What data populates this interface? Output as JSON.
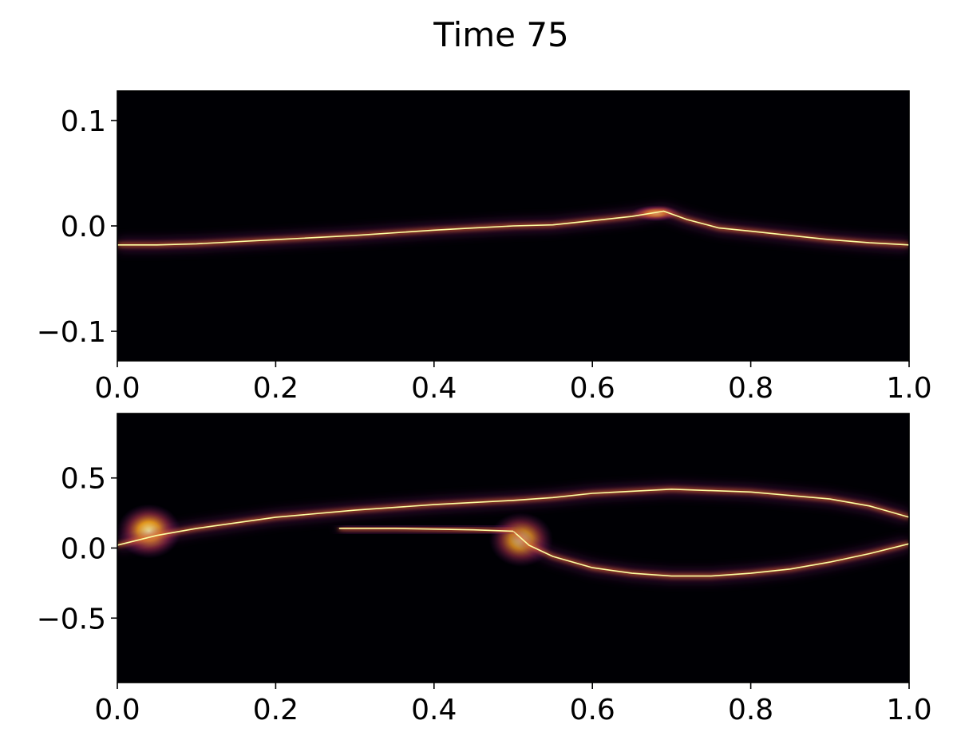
{
  "figure": {
    "title": "Time 75",
    "colormap": "inferno",
    "background_color": "#000004",
    "axes_color": "#000000"
  },
  "chart_data": [
    {
      "type": "heatmap",
      "title": "",
      "xlabel": "",
      "ylabel": "",
      "xlim": [
        0.0,
        1.0
      ],
      "ylim": [
        -0.128,
        0.128
      ],
      "x_ticks": [
        0.0,
        0.2,
        0.4,
        0.6,
        0.8,
        1.0
      ],
      "x_tick_labels": [
        "0.0",
        "0.2",
        "0.4",
        "0.6",
        "0.8",
        "1.0"
      ],
      "y_ticks": [
        0.1,
        0.0,
        -0.1
      ],
      "y_tick_labels": [
        "0.1",
        "0.0",
        "−0.1"
      ],
      "ridge_curves": [
        {
          "x": [
            0.0,
            0.05,
            0.1,
            0.2,
            0.3,
            0.4,
            0.45,
            0.5,
            0.55,
            0.6,
            0.65,
            0.69,
            0.72,
            0.76,
            0.8,
            0.85,
            0.9,
            0.95,
            1.0
          ],
          "y": [
            -0.018,
            -0.018,
            -0.017,
            -0.013,
            -0.009,
            -0.004,
            -0.002,
            0.0,
            0.001,
            0.005,
            0.009,
            0.014,
            0.006,
            -0.002,
            -0.005,
            -0.009,
            -0.013,
            -0.016,
            -0.018
          ]
        }
      ],
      "hotspots": [
        {
          "x": 0.68,
          "y": 0.012,
          "intensity": 1.0
        }
      ]
    },
    {
      "type": "heatmap",
      "title": "",
      "xlabel": "",
      "ylabel": "",
      "xlim": [
        0.0,
        1.0
      ],
      "ylim": [
        -0.96,
        0.96
      ],
      "x_ticks": [
        0.0,
        0.2,
        0.4,
        0.6,
        0.8,
        1.0
      ],
      "x_tick_labels": [
        "0.0",
        "0.2",
        "0.4",
        "0.6",
        "0.8",
        "1.0"
      ],
      "y_ticks": [
        0.5,
        0.0,
        -0.5
      ],
      "y_tick_labels": [
        "0.5",
        "0.0",
        "−0.5"
      ],
      "ridge_curves": [
        {
          "x": [
            0.0,
            0.05,
            0.1,
            0.2,
            0.3,
            0.4,
            0.5,
            0.55,
            0.6,
            0.7,
            0.8,
            0.9,
            0.95,
            1.0
          ],
          "y": [
            0.02,
            0.09,
            0.14,
            0.22,
            0.27,
            0.31,
            0.34,
            0.36,
            0.39,
            0.42,
            0.4,
            0.35,
            0.3,
            0.22
          ]
        },
        {
          "x": [
            0.5,
            0.52,
            0.55,
            0.6,
            0.65,
            0.7,
            0.75,
            0.8,
            0.85,
            0.9,
            0.95,
            1.0
          ],
          "y": [
            0.12,
            0.02,
            -0.06,
            -0.14,
            -0.18,
            -0.2,
            -0.2,
            -0.18,
            -0.15,
            -0.1,
            -0.04,
            0.03
          ]
        },
        {
          "x": [
            0.28,
            0.35,
            0.4,
            0.45,
            0.5
          ],
          "y": [
            0.14,
            0.14,
            0.135,
            0.13,
            0.12
          ]
        }
      ],
      "hotspots": [
        {
          "x": 0.04,
          "y": 0.12,
          "intensity": 1.0
        },
        {
          "x": 0.51,
          "y": 0.06,
          "intensity": 0.9
        }
      ]
    }
  ]
}
